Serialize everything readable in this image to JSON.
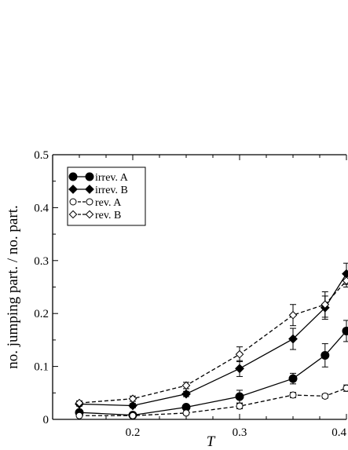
{
  "chart_data": {
    "type": "line",
    "xlabel": "T",
    "ylabel": "no. jumping part. / no. part.",
    "xlim": [
      0.125,
      0.4
    ],
    "ylim": [
      0,
      0.5
    ],
    "x_ticks": [
      0.2,
      0.3,
      0.4
    ],
    "x_tick_labels": [
      "0.2",
      "0.3",
      "0.4"
    ],
    "y_ticks": [
      0,
      0.1,
      0.2,
      0.3,
      0.4,
      0.5
    ],
    "y_tick_labels": [
      "0",
      "0.1",
      "0.2",
      "0.3",
      "0.4",
      "0.5"
    ],
    "grid": false,
    "legend_position": "top-left",
    "series": [
      {
        "name": "irrev. A",
        "marker": "circle-filled",
        "line": "solid",
        "x": [
          0.15,
          0.2,
          0.25,
          0.3,
          0.35,
          0.38,
          0.4
        ],
        "y": [
          0.013,
          0.008,
          0.023,
          0.043,
          0.077,
          0.121,
          0.167
        ],
        "err": [
          0.004,
          0.003,
          0.004,
          0.012,
          0.01,
          0.022,
          0.02
        ]
      },
      {
        "name": "irrev. B",
        "marker": "diamond-filled",
        "line": "solid",
        "x": [
          0.15,
          0.2,
          0.25,
          0.3,
          0.35,
          0.38,
          0.4
        ],
        "y": [
          0.029,
          0.026,
          0.048,
          0.096,
          0.152,
          0.211,
          0.275
        ],
        "err": [
          0.004,
          0.004,
          0.005,
          0.015,
          0.02,
          0.022,
          0.02
        ]
      },
      {
        "name": "rev. A",
        "marker": "circle-open",
        "line": "dashed",
        "x": [
          0.15,
          0.2,
          0.25,
          0.3,
          0.35,
          0.38,
          0.4
        ],
        "y": [
          0.007,
          0.007,
          0.012,
          0.025,
          0.046,
          0.044,
          0.059
        ],
        "err": [
          0.002,
          0.002,
          0.003,
          0.005,
          0.005,
          0.004,
          0.006
        ]
      },
      {
        "name": "rev. B",
        "marker": "diamond-open",
        "line": "dashed",
        "x": [
          0.15,
          0.2,
          0.25,
          0.3,
          0.35,
          0.38,
          0.4
        ],
        "y": [
          0.031,
          0.039,
          0.064,
          0.123,
          0.197,
          0.217,
          0.262
        ],
        "err": [
          0.004,
          0.005,
          0.006,
          0.014,
          0.02,
          0.024,
          0.012
        ]
      }
    ]
  }
}
